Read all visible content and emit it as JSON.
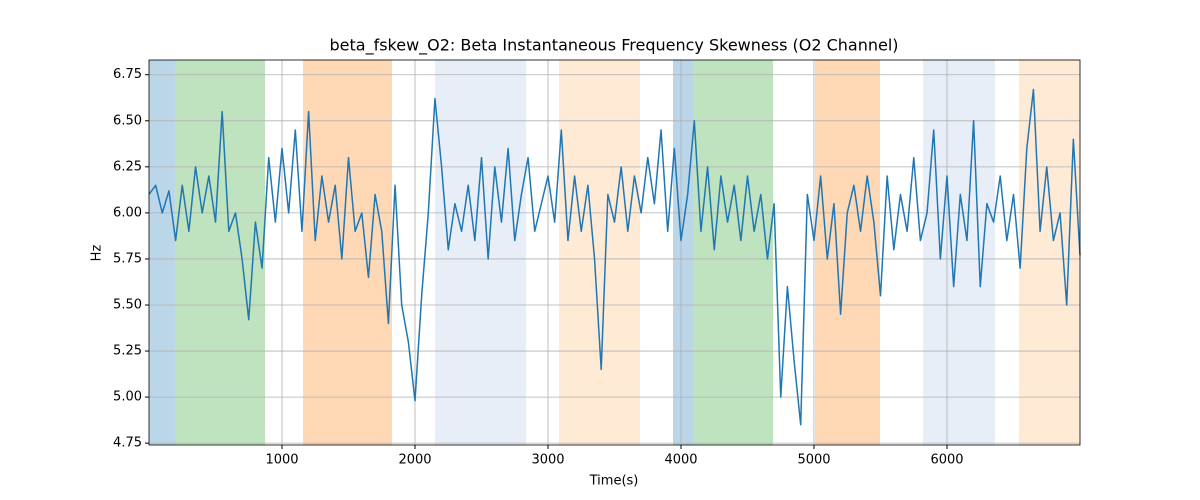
{
  "chart_data": {
    "type": "line",
    "title": "beta_fskew_O2: Beta Instantaneous Frequency Skewness (O2 Channel)",
    "xlabel": "Time(s)",
    "ylabel": "Hz",
    "xlim": [
      0,
      7000
    ],
    "ylim": [
      4.74,
      6.83
    ],
    "xticks": [
      1000,
      2000,
      3000,
      4000,
      5000,
      6000
    ],
    "yticks": [
      4.75,
      {
        "value": 5,
        "label": "5.00"
      },
      5.25,
      {
        "value": 5.5,
        "label": "5.50"
      },
      5.75,
      {
        "value": 6,
        "label": "6.00"
      },
      6.25,
      {
        "value": 6.5,
        "label": "6.50"
      },
      6.75
    ],
    "grid": true,
    "regions": [
      {
        "start": 0,
        "end": 195,
        "color": "rgba(31,119,180,0.3)"
      },
      {
        "start": 195,
        "end": 872,
        "color": "rgba(44,160,44,0.3)"
      },
      {
        "start": 1158,
        "end": 1827,
        "color": "rgba(255,127,14,0.3)"
      },
      {
        "start": 2150,
        "end": 2835,
        "color": "rgba(174,199,232,0.3)"
      },
      {
        "start": 3083,
        "end": 3692,
        "color": "rgba(255,187,120,0.3)"
      },
      {
        "start": 3940,
        "end": 4090,
        "color": "rgba(31,119,180,0.3)"
      },
      {
        "start": 4090,
        "end": 4692,
        "color": "rgba(44,160,44,0.3)"
      },
      {
        "start": 5008,
        "end": 5496,
        "color": "rgba(255,127,14,0.3)"
      },
      {
        "start": 5820,
        "end": 6361,
        "color": "rgba(174,199,232,0.3)"
      },
      {
        "start": 6541,
        "end": 7000,
        "color": "rgba(255,187,120,0.3)"
      }
    ],
    "x": [
      0,
      50,
      100,
      150,
      200,
      250,
      300,
      350,
      400,
      450,
      500,
      550,
      600,
      650,
      700,
      750,
      800,
      850,
      900,
      950,
      1000,
      1050,
      1100,
      1150,
      1200,
      1250,
      1300,
      1350,
      1400,
      1450,
      1500,
      1550,
      1600,
      1650,
      1700,
      1750,
      1800,
      1850,
      1900,
      1950,
      2000,
      2050,
      2100,
      2150,
      2200,
      2250,
      2300,
      2350,
      2400,
      2450,
      2500,
      2550,
      2600,
      2650,
      2700,
      2750,
      2800,
      2850,
      2900,
      2950,
      3000,
      3050,
      3100,
      3150,
      3200,
      3250,
      3300,
      3350,
      3400,
      3450,
      3500,
      3550,
      3600,
      3650,
      3700,
      3750,
      3800,
      3850,
      3900,
      3950,
      4000,
      4050,
      4100,
      4150,
      4200,
      4250,
      4300,
      4350,
      4400,
      4450,
      4500,
      4550,
      4600,
      4650,
      4700,
      4750,
      4800,
      4850,
      4900,
      4950,
      5000,
      5050,
      5100,
      5150,
      5200,
      5250,
      5300,
      5350,
      5400,
      5450,
      5500,
      5550,
      5600,
      5650,
      5700,
      5750,
      5800,
      5850,
      5900,
      5950,
      6000,
      6050,
      6100,
      6150,
      6200,
      6250,
      6300,
      6350,
      6400,
      6450,
      6500,
      6550,
      6600,
      6650,
      6700,
      6750,
      6800,
      6850,
      6900,
      6950,
      7000
    ],
    "series": [
      {
        "name": "beta_fskew_O2",
        "color": "#1f77b4",
        "values": [
          6.1,
          6.15,
          6.0,
          6.12,
          5.85,
          6.15,
          5.9,
          6.25,
          6.0,
          6.2,
          5.95,
          6.55,
          5.9,
          6.0,
          5.75,
          5.42,
          5.95,
          5.7,
          6.3,
          5.95,
          6.35,
          6.0,
          6.45,
          5.9,
          6.55,
          5.85,
          6.2,
          5.95,
          6.15,
          5.75,
          6.3,
          5.9,
          6.0,
          5.65,
          6.1,
          5.9,
          5.4,
          6.15,
          5.5,
          5.3,
          4.98,
          5.55,
          6.0,
          6.62,
          6.25,
          5.8,
          6.05,
          5.9,
          6.15,
          5.85,
          6.3,
          5.75,
          6.25,
          5.95,
          6.35,
          5.85,
          6.1,
          6.3,
          5.9,
          6.05,
          6.2,
          5.95,
          6.45,
          5.85,
          6.2,
          5.9,
          6.15,
          5.75,
          5.15,
          6.1,
          5.95,
          6.25,
          5.9,
          6.2,
          6.0,
          6.3,
          6.05,
          6.45,
          5.9,
          6.35,
          5.85,
          6.1,
          6.5,
          5.9,
          6.25,
          5.8,
          6.2,
          5.95,
          6.15,
          5.85,
          6.2,
          5.9,
          6.1,
          5.75,
          6.05,
          5.0,
          5.6,
          5.2,
          4.85,
          6.1,
          5.85,
          6.2,
          5.75,
          6.05,
          5.45,
          6.0,
          6.15,
          5.9,
          6.2,
          5.95,
          5.55,
          6.2,
          5.8,
          6.1,
          5.9,
          6.3,
          5.85,
          6.0,
          6.45,
          5.75,
          6.2,
          5.6,
          6.1,
          5.85,
          6.5,
          5.6,
          6.05,
          5.95,
          6.2,
          5.85,
          6.1,
          5.7,
          6.35,
          6.67,
          5.9,
          6.25,
          5.85,
          6.0,
          5.5,
          6.4,
          5.77
        ]
      }
    ]
  }
}
